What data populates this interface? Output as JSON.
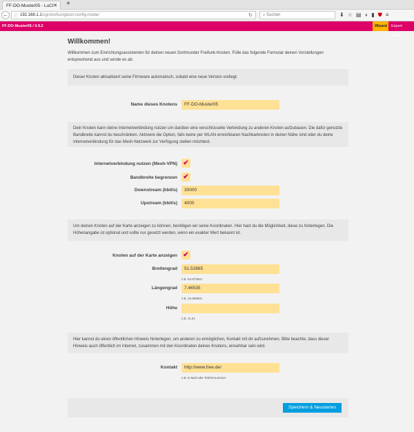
{
  "browser": {
    "tab_title": "FF-DO-Muster05 - LuCI",
    "url_host": "192.168.1.1",
    "url_path": "/cgi-bin/luci/gluon-config-mode/",
    "search_placeholder": "Suchen"
  },
  "header": {
    "brand": "FF-DO-Muster05 / 0.9.2",
    "wizard": "Wizard",
    "expert": "Expert Mode",
    "accent": "#dc0067"
  },
  "page": {
    "title": "Willkommen!",
    "intro": "Willkommen zum Einrichtungsassistenten für deinen neuen Dortmunder Freifunk-Knoten. Fülle das folgende Formular deinen Vorstellungen entsprechend aus und sende es ab.",
    "autoupdate_note": "Dieser Knoten aktualisiert seine Firmware automatisch, sobald eine neue Version vorliegt.",
    "name_label": "Name dieses Knotens",
    "name_value": "FF-DO-Muster05",
    "vpn_note": "Dein Knoten kann deine Internetverbindung nutzen um darüber eine verschlüsselte Verbindung zu anderen Knoten aufzubauen. Die dafür genutzte Bandbreite kannst du beschränken. Aktiviere die Option, falls keine per WLAN erreichbaren Nachbarknoten in deiner Nähe sind oder du deine Internetverbindung für das Mesh-Netzwerk zur Verfügung stellen möchtest.",
    "vpn_label": "Internetverbindung nutzen (Mesh-VPN)",
    "vpn_checked": true,
    "limit_label": "Bandbreite begrenzen",
    "limit_checked": true,
    "down_label": "Downstream (kbit/s)",
    "down_value": "30000",
    "up_label": "Upstream (kbit/s)",
    "up_value": "4000",
    "map_note": "Um deinen Knoten auf der Karte anzeigen zu können, benötigen wir seine Koordinaten. Hier hast du die Möglichkeit, diese zu hinterlegen. Die Höhenangabe ist optional und sollte nur gesetzt werden, wenn ein exakter Wert bekannt ist.",
    "map_label": "Knoten auf der Karte anzeigen",
    "map_checked": true,
    "lat_label": "Breitengrad",
    "lat_value": "51.52865",
    "lat_hint": "z.B. 53.873621",
    "lon_label": "Längengrad",
    "lon_value": "7.46535",
    "lon_hint": "z.B. 10.689901",
    "alt_label": "Höhe",
    "alt_value": "",
    "alt_hint": "z.B. 11.51",
    "contact_note": "Hier kannst du einen öffentlichen Hinweis hinterlegen, um anderen zu ermöglichen, Kontakt mit dir aufzunehmen. Bitte beachte, dass dieser Hinweis auch öffentlich im Internet, zusammen mit den Koordinaten deines Knotens, einsehbar sein wird.",
    "contact_label": "Kontakt",
    "contact_value": "http://www.free.de/",
    "contact_hint": "z.B. E-Mail oder Telefonnummer",
    "submit": "Speichern & Neustarten",
    "checkmark": "✔"
  }
}
